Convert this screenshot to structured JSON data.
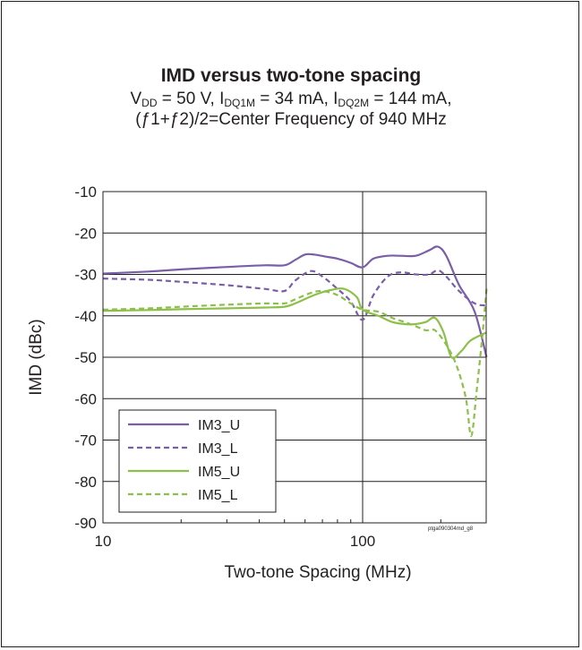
{
  "chart_data": {
    "type": "line",
    "title": "IMD versus two-tone spacing",
    "subtitle_line1": {
      "vdd_label": "V",
      "vdd_sub": "DD",
      "vdd_value": " = 50 V, ",
      "i1_label": "I",
      "i1_sub": "DQ1M",
      "i1_value": " = 34 mA, ",
      "i2_label": "I",
      "i2_sub": "DQ2M",
      "i2_value": " = 144 mA,"
    },
    "subtitle_line2": "(ƒ1+ƒ2)/2=Center Frequency of 940 MHz",
    "xlabel": "Two-tone Spacing (MHz)",
    "ylabel": "IMD (dBc)",
    "x_scale": "log",
    "xlim": [
      10,
      1000
    ],
    "ylim": [
      -90,
      -10
    ],
    "x_ticks": [
      "10",
      "100"
    ],
    "y_ticks": [
      "-10",
      "-20",
      "-30",
      "-40",
      "-50",
      "-60",
      "-70",
      "-80",
      "-90"
    ],
    "grid": true,
    "legend_position": "bottom-left",
    "watermark": "ptga090304md_g8",
    "series": [
      {
        "name": "IM3_U",
        "color": "#7a5ea8",
        "dash": "solid",
        "x": [
          10,
          15,
          20,
          30,
          42,
          50,
          55,
          60,
          65,
          72,
          80,
          90,
          100,
          110,
          125,
          140,
          160,
          180,
          195,
          210,
          235,
          270,
          300
        ],
        "y": [
          -29.8,
          -29.3,
          -28.8,
          -28.2,
          -27.8,
          -27.8,
          -26.5,
          -25.2,
          -25.2,
          -25.7,
          -26.2,
          -27.2,
          -28.3,
          -26.2,
          -25.5,
          -25.5,
          -25.5,
          -24.2,
          -23.3,
          -25.5,
          -32.5,
          -39,
          -50
        ]
      },
      {
        "name": "IM3_L",
        "color": "#7a5ea8",
        "dash": "dashed",
        "x": [
          10,
          15,
          20,
          30,
          42,
          50,
          55,
          63,
          70,
          80,
          90,
          100,
          110,
          125,
          140,
          160,
          180,
          195,
          210,
          235,
          270,
          300
        ],
        "y": [
          -31,
          -31.3,
          -31.8,
          -32.6,
          -33.5,
          -34,
          -31.5,
          -29.2,
          -30.5,
          -33.5,
          -36.5,
          -41,
          -35,
          -30.5,
          -29.5,
          -30,
          -30,
          -29,
          -30.5,
          -34,
          -37,
          -37.5
        ]
      },
      {
        "name": "IM5_U",
        "color": "#8dc04a",
        "dash": "solid",
        "x": [
          10,
          15,
          20,
          30,
          42,
          50,
          55,
          65,
          75,
          85,
          95,
          100,
          115,
          130,
          145,
          160,
          175,
          190,
          205,
          220,
          240,
          260,
          300
        ],
        "y": [
          -38.8,
          -38.6,
          -38.4,
          -38.2,
          -38,
          -37.8,
          -37,
          -35,
          -33.8,
          -33.5,
          -35.5,
          -38.5,
          -40,
          -41.5,
          -42,
          -42,
          -41.5,
          -40.5,
          -44,
          -50,
          -48.5,
          -46,
          -44
        ]
      },
      {
        "name": "IM5_L",
        "color": "#8dc04a",
        "dash": "dashed",
        "x": [
          10,
          15,
          20,
          30,
          42,
          50,
          55,
          63,
          70,
          80,
          90,
          100,
          115,
          130,
          145,
          160,
          175,
          190,
          210,
          230,
          250,
          262,
          275,
          290,
          300
        ],
        "y": [
          -38.5,
          -38.2,
          -37.8,
          -37.3,
          -37,
          -37,
          -36,
          -34.5,
          -34,
          -35,
          -37,
          -38.5,
          -39,
          -40.5,
          -41.5,
          -42.5,
          -43.5,
          -43.5,
          -47,
          -52,
          -60,
          -69,
          -58,
          -44,
          -33.5
        ]
      }
    ]
  }
}
